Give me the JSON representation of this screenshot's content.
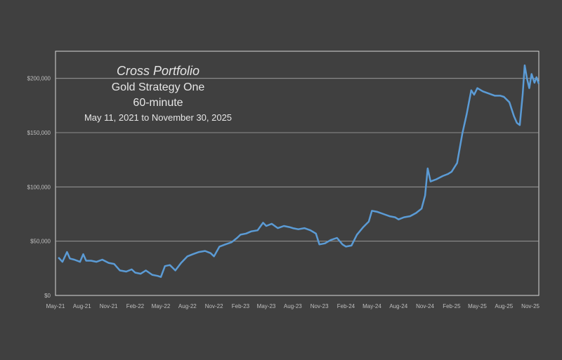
{
  "chart_data": {
    "type": "line",
    "title": "Cross Portfolio",
    "subtitle_lines": [
      "Gold Strategy One",
      "60-minute",
      "May 11,  2021 to November 30, 2025"
    ],
    "xlabel": "",
    "ylabel": "",
    "ylim": [
      0,
      225000
    ],
    "yticks": [
      0,
      50000,
      100000,
      150000,
      200000
    ],
    "ytick_labels": [
      "$0",
      "$50,000",
      "$100,000",
      "$150,000",
      "$200,000"
    ],
    "xlim": [
      "2021-05-01",
      "2025-11-30"
    ],
    "xtick_labels": [
      "May-21",
      "Aug-21",
      "Nov-21",
      "Feb-22",
      "May-22",
      "Aug-22",
      "Nov-22",
      "Feb-23",
      "May-23",
      "Aug-23",
      "Nov-23",
      "Feb-24",
      "May-24",
      "Aug-24",
      "Nov-24",
      "Feb-25",
      "May-25",
      "Aug-25",
      "Nov-25"
    ],
    "xtick_dates": [
      "2021-05-01",
      "2021-08-01",
      "2021-11-01",
      "2022-02-01",
      "2022-05-01",
      "2022-08-01",
      "2022-11-01",
      "2023-02-01",
      "2023-05-01",
      "2023-08-01",
      "2023-11-01",
      "2024-02-01",
      "2024-05-01",
      "2024-08-01",
      "2024-11-01",
      "2025-02-01",
      "2025-05-01",
      "2025-08-01",
      "2025-11-01"
    ],
    "grid": "horizontal",
    "legend": "none",
    "line_color": "#5b9bd5",
    "series": [
      {
        "x": [
          "2021-05-11",
          "2021-05-25",
          "2021-06-10",
          "2021-06-20",
          "2021-07-05",
          "2021-07-25",
          "2021-08-05",
          "2021-08-15",
          "2021-09-01",
          "2021-09-20",
          "2021-10-10",
          "2021-11-01",
          "2021-11-20",
          "2021-12-10",
          "2022-01-01",
          "2022-01-20",
          "2022-02-01",
          "2022-02-20",
          "2022-03-10",
          "2022-04-01",
          "2022-04-20",
          "2022-05-01",
          "2022-05-15",
          "2022-06-01",
          "2022-06-20",
          "2022-07-10",
          "2022-08-01",
          "2022-08-20",
          "2022-09-10",
          "2022-10-01",
          "2022-10-20",
          "2022-11-01",
          "2022-11-20",
          "2022-12-10",
          "2023-01-01",
          "2023-01-20",
          "2023-02-01",
          "2023-02-20",
          "2023-03-10",
          "2023-04-01",
          "2023-04-20",
          "2023-05-01",
          "2023-05-20",
          "2023-06-10",
          "2023-07-01",
          "2023-07-20",
          "2023-08-01",
          "2023-08-20",
          "2023-09-10",
          "2023-10-01",
          "2023-10-20",
          "2023-11-01",
          "2023-11-20",
          "2023-12-10",
          "2024-01-01",
          "2024-01-20",
          "2024-02-01",
          "2024-02-20",
          "2024-03-10",
          "2024-04-01",
          "2024-04-20",
          "2024-05-01",
          "2024-05-20",
          "2024-06-10",
          "2024-07-01",
          "2024-07-20",
          "2024-08-01",
          "2024-08-20",
          "2024-09-10",
          "2024-10-01",
          "2024-10-20",
          "2024-11-01",
          "2024-11-10",
          "2024-11-20",
          "2024-12-10",
          "2025-01-01",
          "2025-01-20",
          "2025-02-01",
          "2025-02-20",
          "2025-03-10",
          "2025-03-25",
          "2025-04-10",
          "2025-04-20",
          "2025-05-01",
          "2025-05-20",
          "2025-06-10",
          "2025-07-01",
          "2025-07-20",
          "2025-08-01",
          "2025-08-20",
          "2025-09-05",
          "2025-09-15",
          "2025-09-25",
          "2025-10-05",
          "2025-10-12",
          "2025-10-20",
          "2025-10-28",
          "2025-11-05",
          "2025-11-15",
          "2025-11-22",
          "2025-11-30"
        ],
        "values": [
          35000,
          31000,
          40000,
          34000,
          33000,
          31000,
          38000,
          32000,
          32000,
          31000,
          33000,
          30000,
          29000,
          23000,
          22000,
          24000,
          21000,
          20000,
          23000,
          19000,
          18000,
          17000,
          27000,
          28000,
          23000,
          30000,
          36000,
          38000,
          40000,
          41000,
          39000,
          36000,
          45000,
          47000,
          49000,
          53000,
          56000,
          57000,
          59000,
          60000,
          67000,
          64000,
          66000,
          62000,
          64000,
          63000,
          62000,
          61000,
          62000,
          60000,
          57000,
          47000,
          48000,
          51000,
          53000,
          47000,
          45000,
          46000,
          56000,
          63000,
          68000,
          78000,
          77000,
          75000,
          73000,
          72000,
          70000,
          72000,
          73000,
          76000,
          80000,
          92000,
          117000,
          105000,
          107000,
          110000,
          112000,
          114000,
          122000,
          149000,
          167000,
          189000,
          185000,
          191000,
          188000,
          186000,
          184000,
          184000,
          183000,
          178000,
          165000,
          159000,
          157000,
          185000,
          212000,
          200000,
          191000,
          204000,
          196000,
          201000,
          195000
        ]
      }
    ]
  }
}
